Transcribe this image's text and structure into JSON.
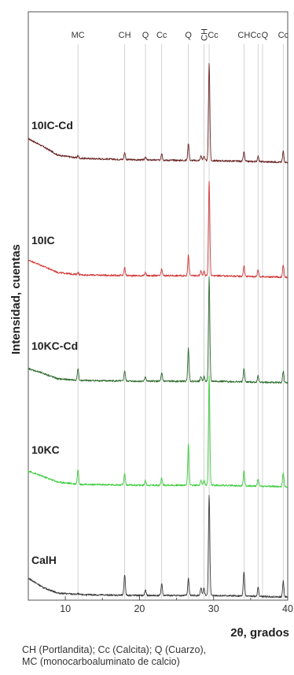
{
  "chart_data": {
    "type": "line",
    "xlabel": "2θ, grados",
    "ylabel": "Intensidad, cuentas",
    "xlim": [
      5,
      40
    ],
    "x_ticks": [
      10,
      20,
      30,
      40
    ],
    "grid": false,
    "y_ticks_shown": false,
    "peak_labels": [
      {
        "label": "MC",
        "x": 11.7
      },
      {
        "label": "CH",
        "x": 18.0
      },
      {
        "label": "Q",
        "x": 20.8
      },
      {
        "label": "Cc",
        "x": 23.0
      },
      {
        "label": "Q",
        "x": 26.6
      },
      {
        "label": "CH",
        "x": 28.7
      },
      {
        "label": "Cc",
        "x": 29.4
      },
      {
        "label": "CH",
        "x": 34.1
      },
      {
        "label": "Cc",
        "x": 36.0
      },
      {
        "label": "Q",
        "x": 36.6
      },
      {
        "label": "Cc",
        "x": 39.4
      }
    ],
    "series": [
      {
        "name": "10IC-Cd",
        "color": "#6b2323",
        "baseline": [
          [
            5,
            30
          ],
          [
            7,
            20
          ],
          [
            9,
            9
          ],
          [
            12,
            5
          ],
          [
            20,
            3
          ],
          [
            30,
            2
          ],
          [
            40,
            0
          ]
        ],
        "peaks": [
          [
            11.7,
            3
          ],
          [
            18.0,
            9
          ],
          [
            20.8,
            4
          ],
          [
            23.0,
            9
          ],
          [
            26.6,
            22
          ],
          [
            28.3,
            6
          ],
          [
            28.7,
            6
          ],
          [
            29.4,
            124
          ],
          [
            34.1,
            12
          ],
          [
            36.0,
            7
          ],
          [
            39.4,
            14
          ]
        ]
      },
      {
        "name": "10IC",
        "color": "#d23a3a",
        "baseline": [
          [
            5,
            22
          ],
          [
            7,
            14
          ],
          [
            9,
            6
          ],
          [
            12,
            3
          ],
          [
            20,
            2
          ],
          [
            30,
            2
          ],
          [
            40,
            0
          ]
        ],
        "peaks": [
          [
            11.7,
            3
          ],
          [
            18.0,
            10
          ],
          [
            20.8,
            4
          ],
          [
            23.0,
            8
          ],
          [
            26.6,
            26
          ],
          [
            28.3,
            6
          ],
          [
            28.7,
            6
          ],
          [
            29.4,
            120
          ],
          [
            34.1,
            13
          ],
          [
            36.0,
            9
          ],
          [
            39.4,
            15
          ]
        ]
      },
      {
        "name": "10KC-Cd",
        "color": "#2d6b2d",
        "baseline": [
          [
            5,
            18
          ],
          [
            7,
            12
          ],
          [
            9,
            5
          ],
          [
            12,
            3
          ],
          [
            20,
            2
          ],
          [
            30,
            2
          ],
          [
            40,
            0
          ]
        ],
        "peaks": [
          [
            11.7,
            14
          ],
          [
            18.0,
            13
          ],
          [
            20.8,
            6
          ],
          [
            23.0,
            10
          ],
          [
            26.6,
            42
          ],
          [
            28.3,
            6
          ],
          [
            28.7,
            6
          ],
          [
            29.4,
            132
          ],
          [
            34.1,
            17
          ],
          [
            36.0,
            8
          ],
          [
            39.4,
            15
          ]
        ]
      },
      {
        "name": "10KC",
        "color": "#3dcc3d",
        "baseline": [
          [
            5,
            20
          ],
          [
            7,
            13
          ],
          [
            9,
            6
          ],
          [
            12,
            3
          ],
          [
            20,
            2
          ],
          [
            30,
            2
          ],
          [
            40,
            0
          ]
        ],
        "peaks": [
          [
            11.7,
            18
          ],
          [
            18.0,
            14
          ],
          [
            20.8,
            6
          ],
          [
            23.0,
            9
          ],
          [
            26.6,
            52
          ],
          [
            28.3,
            6
          ],
          [
            28.7,
            6
          ],
          [
            29.4,
            138
          ],
          [
            34.1,
            19
          ],
          [
            36.0,
            9
          ],
          [
            39.4,
            18
          ]
        ]
      },
      {
        "name": "CalH",
        "color": "#3a3a3a",
        "baseline": [
          [
            5,
            24
          ],
          [
            7,
            12
          ],
          [
            9,
            5
          ],
          [
            12,
            3
          ],
          [
            20,
            2
          ],
          [
            30,
            2
          ],
          [
            40,
            0
          ]
        ],
        "peaks": [
          [
            11.7,
            1
          ],
          [
            18.0,
            26
          ],
          [
            20.8,
            7
          ],
          [
            23.0,
            15
          ],
          [
            26.6,
            22
          ],
          [
            28.3,
            9
          ],
          [
            28.7,
            9
          ],
          [
            29.4,
            128
          ],
          [
            34.1,
            30
          ],
          [
            36.0,
            12
          ],
          [
            39.4,
            20
          ]
        ]
      }
    ]
  },
  "caption": {
    "line1": "CH (Portlandita); Cc (Calcita); Q (Cuarzo),",
    "line2": "MC (monocarboaluminato de calcio)"
  }
}
